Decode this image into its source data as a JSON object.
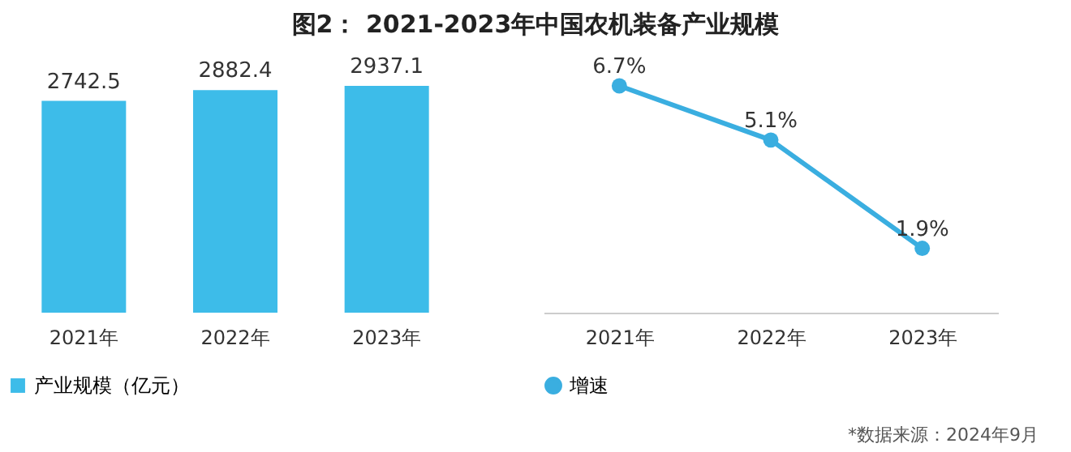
{
  "chart_data": [
    {
      "type": "bar",
      "title": "图2： 2021-2023年中国农机装备产业规模",
      "categories": [
        "2021年",
        "2022年",
        "2023年"
      ],
      "series": [
        {
          "name": "产业规模（亿元）",
          "color": "#3dbce9",
          "values": [
            2742.5,
            2882.4,
            2937.1
          ]
        }
      ],
      "data_labels": true,
      "tick_labels": "x",
      "legend": "bottom"
    },
    {
      "type": "line",
      "categories": [
        "2021年",
        "2022年",
        "2023年"
      ],
      "series": [
        {
          "name": "增速",
          "color": "#3aaee0",
          "values": [
            6.7,
            5.1,
            1.9
          ],
          "value_labels": [
            "6.7%",
            "5.1%",
            "1.9%"
          ]
        }
      ],
      "tick_labels": "x",
      "legend": "bottom",
      "marker": "circle",
      "line_style": "solid",
      "annotations": [
        "*数据来源：2024年9月"
      ]
    }
  ]
}
